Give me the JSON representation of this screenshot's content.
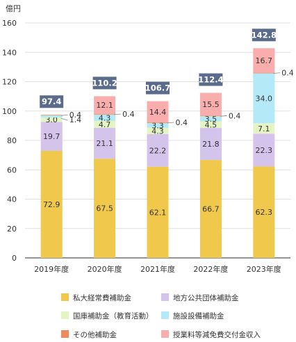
{
  "chart_data": {
    "type": "bar",
    "stacked": true,
    "ylabel": "億円",
    "ylim": [
      0,
      160
    ],
    "yticks": [
      0,
      20,
      40,
      60,
      80,
      100,
      120,
      140,
      160
    ],
    "grid": true,
    "legend_position": "bottom",
    "categories": [
      "2019年度",
      "2020年度",
      "2021年度",
      "2022年度",
      "2023年度"
    ],
    "totals": [
      "97.4",
      "110.2",
      "106.7",
      "112.4",
      "142.8"
    ],
    "series": [
      {
        "name": "私大経常費補助金",
        "color": "#f0c84b",
        "values": [
          72.9,
          67.5,
          62.1,
          66.7,
          62.3
        ],
        "labels": [
          "72.9",
          "67.5",
          "62.1",
          "66.7",
          "62.3"
        ]
      },
      {
        "name": "地方公共団体補助金",
        "color": "#d4c3ea",
        "values": [
          19.7,
          21.1,
          22.2,
          21.8,
          22.3
        ],
        "labels": [
          "19.7",
          "21.1",
          "22.2",
          "21.8",
          "22.3"
        ]
      },
      {
        "name": "国庫補助金（教育活動）",
        "color": "#e4f5c3",
        "values": [
          3.0,
          4.7,
          4.3,
          4.5,
          7.1
        ],
        "labels": [
          "3.0",
          "4.7",
          "4.3",
          "4.5",
          "7.1"
        ]
      },
      {
        "name": "施設設備補助金",
        "color": "#b4eaf7",
        "values": [
          1.4,
          4.3,
          3.3,
          3.5,
          34.0
        ],
        "labels": [
          "1.4",
          "4.3",
          "3.3",
          "3.5",
          "34.0"
        ]
      },
      {
        "name": "その他補助金",
        "color": "#ef8a5e",
        "values": [
          0.4,
          0.4,
          0.4,
          0.4,
          0.4
        ],
        "labels": [
          "0.4",
          "0.4",
          "0.4",
          "0.4",
          "0.4"
        ]
      },
      {
        "name": "授業料等減免費交付金収入",
        "color": "#f9adad",
        "values": [
          0,
          12.1,
          14.4,
          15.5,
          16.7
        ],
        "labels": [
          "",
          "12.1",
          "14.4",
          "15.5",
          "16.7"
        ]
      }
    ],
    "total_box_color": "#5b6b8c"
  }
}
